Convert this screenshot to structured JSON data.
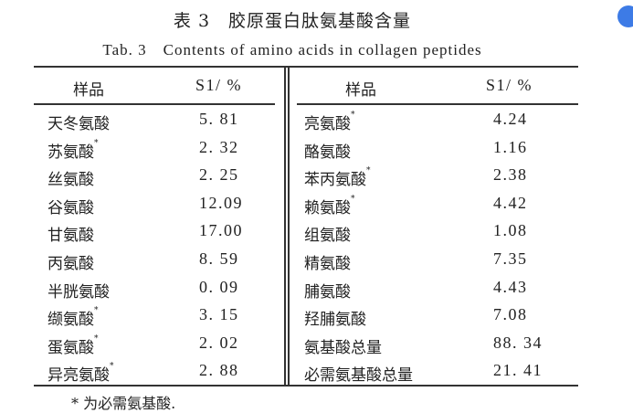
{
  "title": "表 3　胶原蛋白肽氨基酸含量",
  "subtitle": "Tab. 3　Contents of amino acids in collagen peptides",
  "headers": {
    "sample": "样品",
    "value": "S1/ %"
  },
  "left_rows": [
    {
      "name": "天冬氨酸",
      "mark": "",
      "value": "5. 81"
    },
    {
      "name": "苏氨酸",
      "mark": "*",
      "value": "2. 32"
    },
    {
      "name": "丝氨酸",
      "mark": "",
      "value": "2. 25"
    },
    {
      "name": "谷氨酸",
      "mark": "",
      "value": "12.09"
    },
    {
      "name": "甘氨酸",
      "mark": "",
      "value": "17.00"
    },
    {
      "name": "丙氨酸",
      "mark": "",
      "value": "8. 59"
    },
    {
      "name": "半胱氨酸",
      "mark": "",
      "value": "0. 09"
    },
    {
      "name": "缬氨酸",
      "mark": "*",
      "value": "3. 15"
    },
    {
      "name": "蛋氨酸",
      "mark": "*",
      "value": "2. 02"
    },
    {
      "name": "异亮氨酸",
      "mark": "*",
      "value": "2. 88"
    }
  ],
  "right_rows": [
    {
      "name": "亮氨酸",
      "mark": "*",
      "value": "4.24"
    },
    {
      "name": "酪氨酸",
      "mark": "",
      "value": "1.16"
    },
    {
      "name": "苯丙氨酸",
      "mark": "*",
      "value": "2.38"
    },
    {
      "name": "赖氨酸",
      "mark": "*",
      "value": "4.42"
    },
    {
      "name": "组氨酸",
      "mark": "",
      "value": "1.08"
    },
    {
      "name": "精氨酸",
      "mark": "",
      "value": "7.35"
    },
    {
      "name": "脯氨酸",
      "mark": "",
      "value": "4.43"
    },
    {
      "name": "羟脯氨酸",
      "mark": "",
      "value": "7.08"
    },
    {
      "name": "氨基酸总量",
      "mark": "",
      "value": "88. 34"
    },
    {
      "name": "必需氨基酸总量",
      "mark": "",
      "value": "21. 41"
    }
  ],
  "footnote": "*  为必需氨基酸.",
  "icon": "translate-icon",
  "accent": "#3d7be6"
}
